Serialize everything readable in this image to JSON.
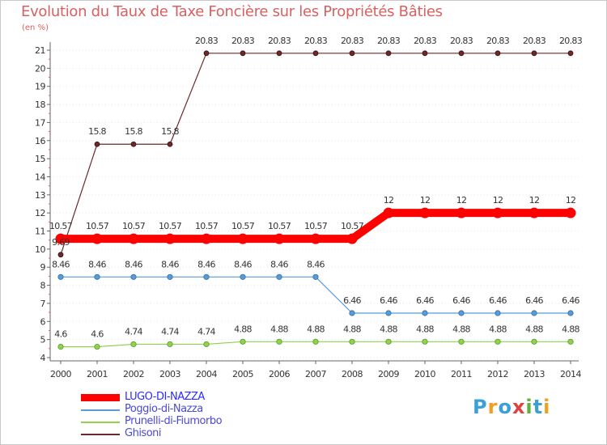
{
  "chart_data": {
    "type": "line",
    "title": "Evolution du Taux de Taxe Foncière sur les Propriétés Bâties",
    "unit_label": "(en %)",
    "xlabel": "",
    "ylabel": "(en %)",
    "categories": [
      "2000",
      "2001",
      "2002",
      "2003",
      "2004",
      "2005",
      "2006",
      "2007",
      "2008",
      "2009",
      "2010",
      "2011",
      "2012",
      "2013",
      "2014"
    ],
    "ylim": [
      4,
      21
    ],
    "yticks": [
      "4",
      "5",
      "6",
      "7",
      "8",
      "9",
      "10",
      "11",
      "12",
      "13",
      "14",
      "15",
      "16",
      "17",
      "18",
      "19",
      "20",
      "21"
    ],
    "legend_position": "bottom-left",
    "series": [
      {
        "name": "LUGO-DI-NAZZA",
        "color": "#ff0000",
        "values": [
          10.57,
          10.57,
          10.57,
          10.57,
          10.57,
          10.57,
          10.57,
          10.57,
          10.57,
          12,
          12,
          12,
          12,
          12,
          12
        ],
        "labels": [
          "10.57",
          "10.57",
          "10.57",
          "10.57",
          "10.57",
          "10.57",
          "10.57",
          "10.57",
          "10.57",
          "12",
          "12",
          "12",
          "12",
          "12",
          "12"
        ]
      },
      {
        "name": "Poggio-di-Nazza",
        "color": "#5b9bd5",
        "values": [
          8.46,
          8.46,
          8.46,
          8.46,
          8.46,
          8.46,
          8.46,
          8.46,
          6.46,
          6.46,
          6.46,
          6.46,
          6.46,
          6.46,
          6.46
        ],
        "labels": [
          "8.46",
          "8.46",
          "8.46",
          "8.46",
          "8.46",
          "8.46",
          "8.46",
          "8.46",
          "6.46",
          "6.46",
          "6.46",
          "6.46",
          "6.46",
          "6.46",
          "6.46"
        ]
      },
      {
        "name": "Prunelli-di-Fiumorbo",
        "color": "#92d050",
        "values": [
          4.6,
          4.6,
          4.74,
          4.74,
          4.74,
          4.88,
          4.88,
          4.88,
          4.88,
          4.88,
          4.88,
          4.88,
          4.88,
          4.88,
          4.88
        ],
        "labels": [
          "4.6",
          "4.6",
          "4.74",
          "4.74",
          "4.74",
          "4.88",
          "4.88",
          "4.88",
          "4.88",
          "4.88",
          "4.88",
          "4.88",
          "4.88",
          "4.88",
          "4.88"
        ]
      },
      {
        "name": "Ghisoni",
        "color": "#6b2a2a",
        "values": [
          9.69,
          15.8,
          15.8,
          15.8,
          20.83,
          20.83,
          20.83,
          20.83,
          20.83,
          20.83,
          20.83,
          20.83,
          20.83,
          20.83,
          20.83
        ],
        "labels": [
          "9.69",
          "15.8",
          "15.8",
          "15.8",
          "20.83",
          "20.83",
          "20.83",
          "20.83",
          "20.83",
          "20.83",
          "20.83",
          "20.83",
          "20.83",
          "20.83",
          "20.83"
        ]
      }
    ]
  },
  "logo": {
    "text": "Proxiti",
    "letters": [
      "P",
      "r",
      "o",
      "x",
      "i",
      "t",
      "i"
    ],
    "colors": [
      "#3aa0d8",
      "#f0a020",
      "#3aa0d8",
      "#e04040",
      "#60b040",
      "#3aa0d8",
      "#f0a020"
    ]
  }
}
